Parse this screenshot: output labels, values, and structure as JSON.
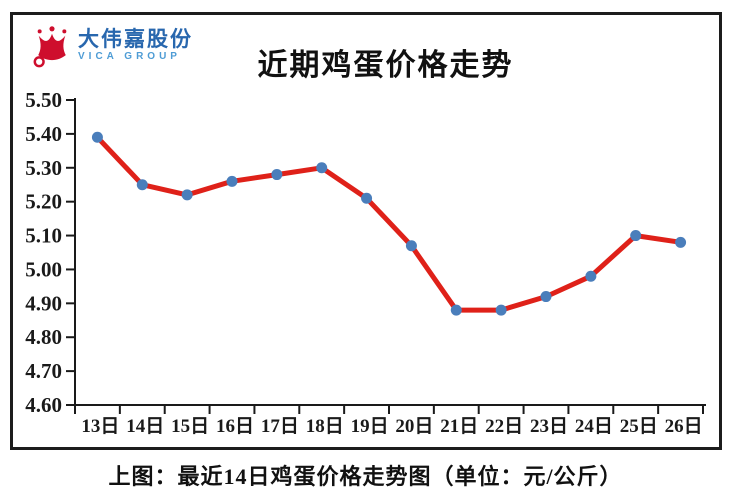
{
  "logo": {
    "company_name": "大伟嘉股份",
    "group_name": "VICA GROUP"
  },
  "caption": "上图：最近14日鸡蛋价格走势图（单位：元/公斤）",
  "colors": {
    "line_red": "#DF2119",
    "marker_blue": "#4A7EBB",
    "axis_black": "#1a1a1a",
    "brand_blue": "#2867AE",
    "brand_light_blue": "#4E9CD5",
    "crown_red": "#CE0E2D"
  },
  "chart_data": {
    "type": "line",
    "title": "近期鸡蛋价格走势",
    "categories": [
      "13日",
      "14日",
      "15日",
      "16日",
      "17日",
      "18日",
      "19日",
      "20日",
      "21日",
      "22日",
      "23日",
      "24日",
      "25日",
      "26日"
    ],
    "values": [
      5.39,
      5.25,
      5.22,
      5.26,
      5.28,
      5.3,
      5.21,
      5.07,
      4.88,
      4.88,
      4.92,
      4.98,
      5.1,
      5.08
    ],
    "unit": "元/公斤",
    "ylim": [
      4.6,
      5.5
    ],
    "ytick_step": 0.1,
    "ytick_labels": [
      "5.50",
      "5.40",
      "5.30",
      "5.20",
      "5.10",
      "5.00",
      "4.90",
      "4.80",
      "4.70",
      "4.60"
    ],
    "grid": false,
    "legend": "none",
    "line_color": "#DF2119",
    "marker_color": "#4A7EBB"
  }
}
